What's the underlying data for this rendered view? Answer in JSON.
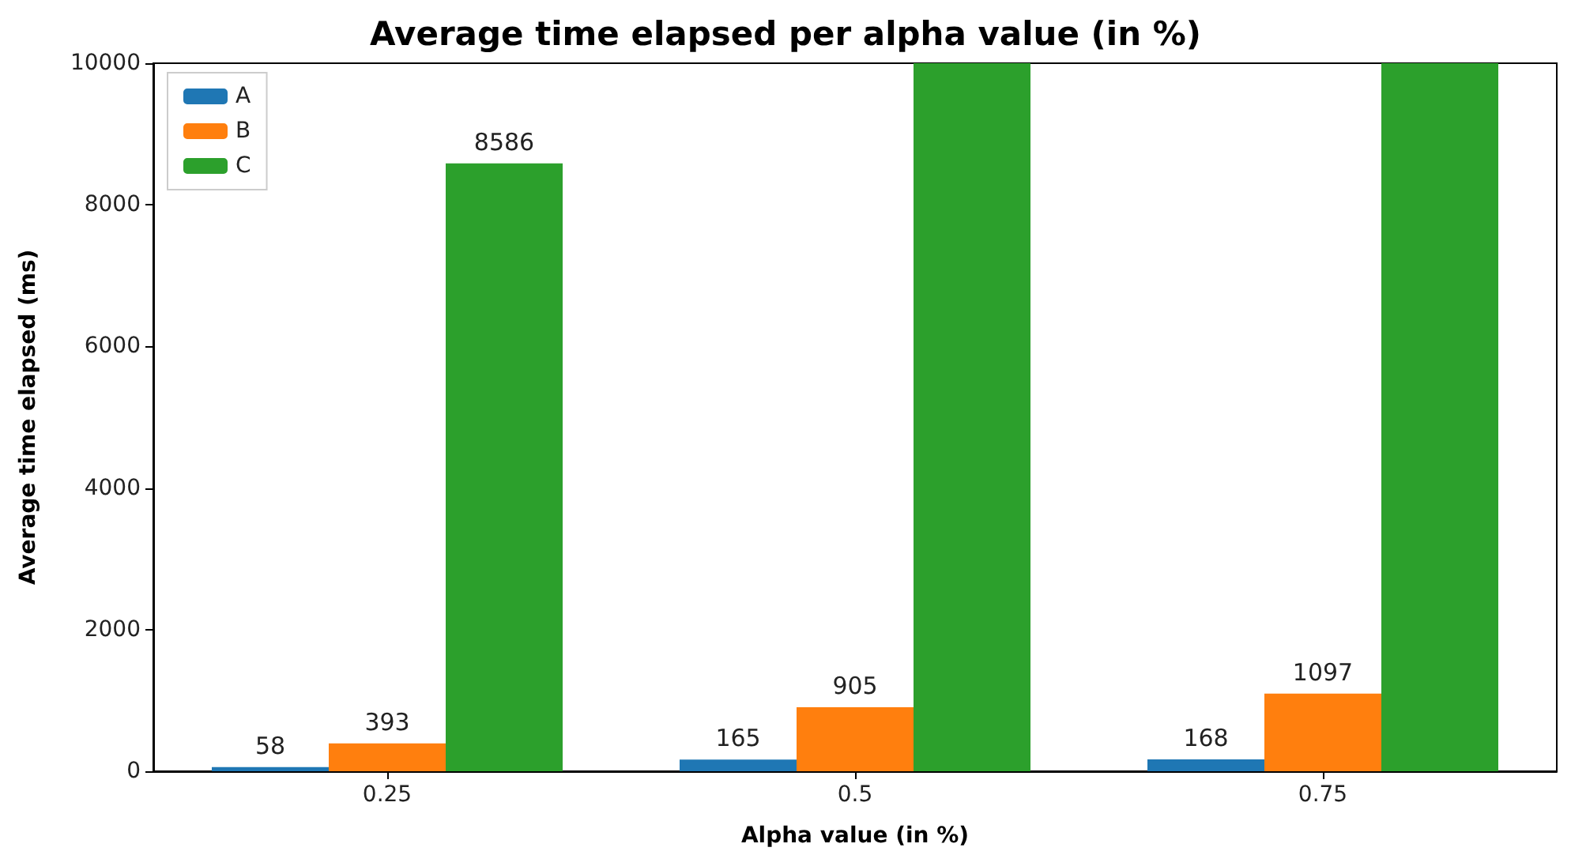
{
  "chart_data": {
    "type": "bar",
    "title": "Average time elapsed per alpha value (in %)",
    "xlabel": "Alpha value (in %)",
    "ylabel": "Average time elapsed (ms)",
    "categories": [
      "0.25",
      "0.5",
      "0.75"
    ],
    "series": [
      {
        "name": "A",
        "color": "#1f77b4",
        "values": [
          58,
          165,
          168
        ],
        "value_labels": [
          "58",
          "165",
          "168"
        ]
      },
      {
        "name": "B",
        "color": "#ff7f0e",
        "values": [
          393,
          905,
          1097
        ],
        "value_labels": [
          "393",
          "905",
          "1097"
        ]
      },
      {
        "name": "C",
        "color": "#2ca02c",
        "values": [
          8586,
          10000,
          10000
        ],
        "value_labels": [
          "8586",
          null,
          null
        ]
      }
    ],
    "ylim": [
      0,
      10000
    ],
    "yticks": [
      0,
      2000,
      4000,
      6000,
      8000,
      10000
    ],
    "grid": false,
    "legend": "top left"
  }
}
